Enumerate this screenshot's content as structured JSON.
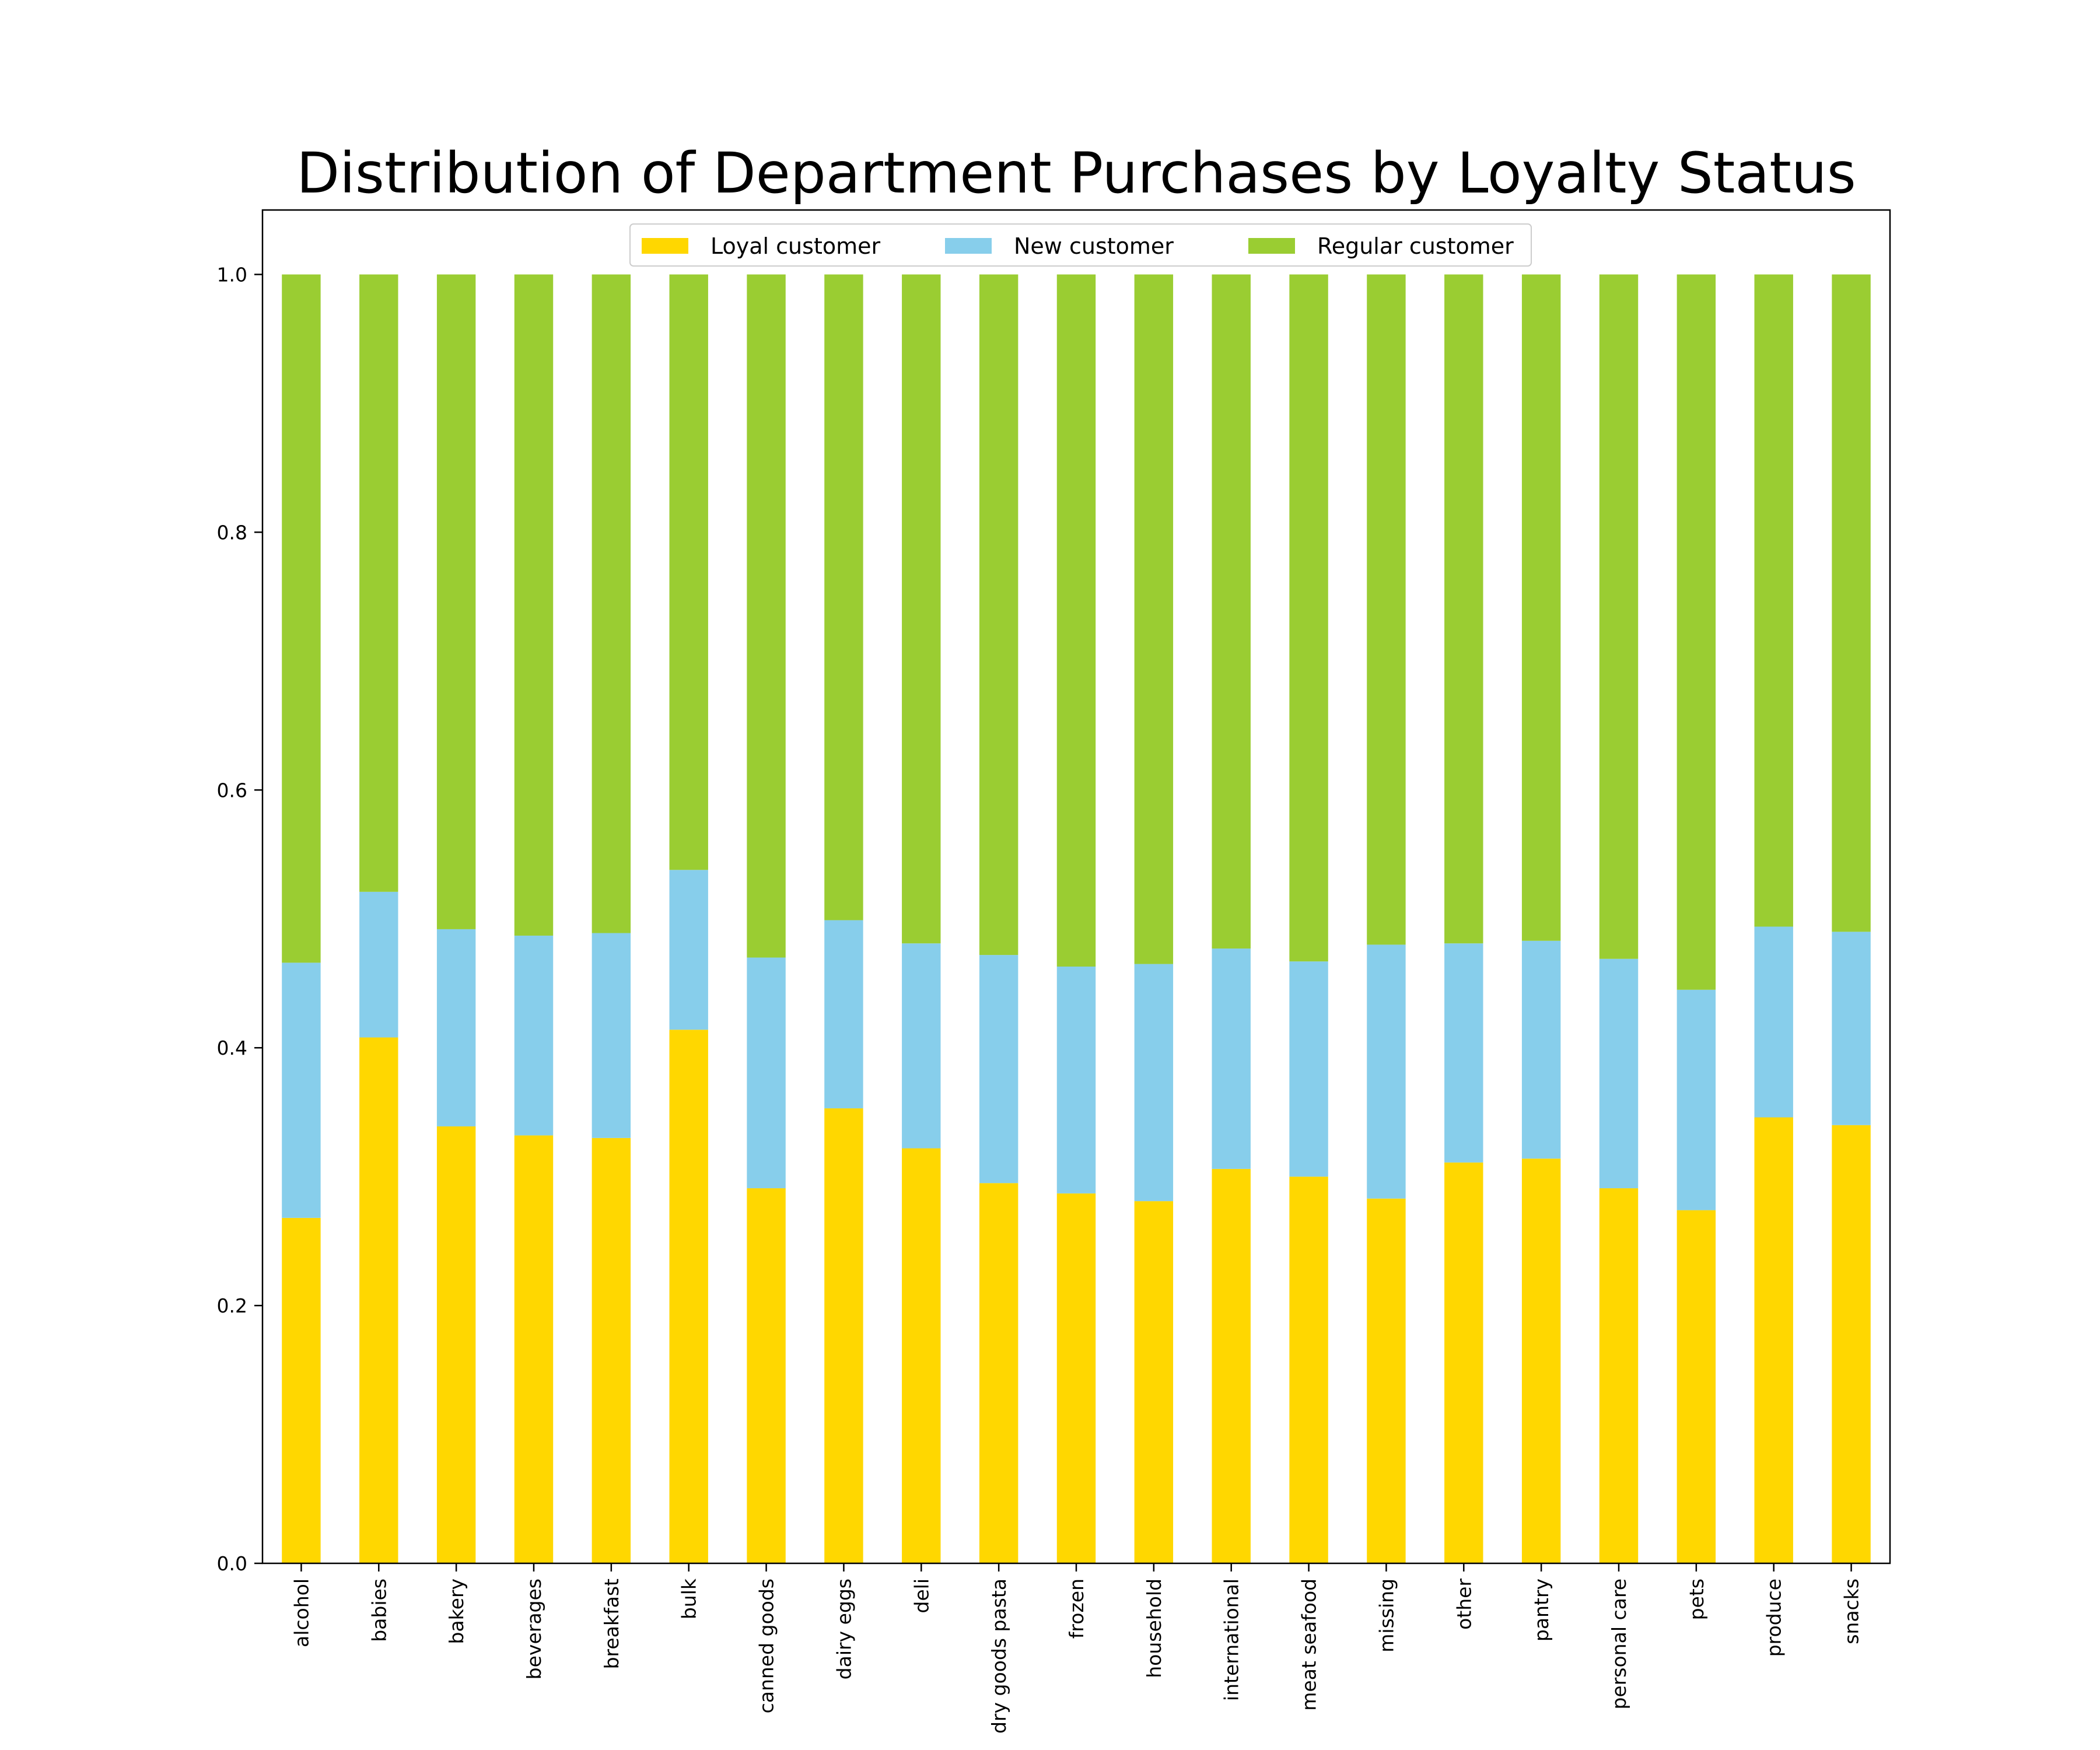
{
  "chart_data": {
    "type": "bar",
    "stacked": true,
    "title": "Distribution of Department Purchases by Loyalty Status",
    "xlabel": "",
    "ylabel": "",
    "ylim": [
      0,
      1.05
    ],
    "yticks": [
      0.0,
      0.2,
      0.4,
      0.6,
      0.8,
      1.0
    ],
    "ytick_labels": [
      "0.0",
      "0.2",
      "0.4",
      "0.6",
      "0.8",
      "1.0"
    ],
    "grid": false,
    "legend_position": "top-center",
    "categories": [
      "alcohol",
      "babies",
      "bakery",
      "beverages",
      "breakfast",
      "bulk",
      "canned goods",
      "dairy eggs",
      "deli",
      "dry goods pasta",
      "frozen",
      "household",
      "international",
      "meat seafood",
      "missing",
      "other",
      "pantry",
      "personal care",
      "pets",
      "produce",
      "snacks"
    ],
    "series": [
      {
        "name": "Loyal customer",
        "color": "#FFD700",
        "values": [
          0.268,
          0.408,
          0.339,
          0.332,
          0.33,
          0.414,
          0.291,
          0.353,
          0.322,
          0.295,
          0.287,
          0.281,
          0.306,
          0.3,
          0.283,
          0.311,
          0.314,
          0.291,
          0.274,
          0.346,
          0.34
        ]
      },
      {
        "name": "New customer",
        "color": "#87CEEB",
        "values": [
          0.198,
          0.113,
          0.153,
          0.155,
          0.159,
          0.124,
          0.179,
          0.146,
          0.159,
          0.177,
          0.176,
          0.184,
          0.171,
          0.167,
          0.197,
          0.17,
          0.169,
          0.178,
          0.171,
          0.148,
          0.15
        ]
      },
      {
        "name": "Regular customer",
        "color": "#9ACD32",
        "values": [
          0.534,
          0.479,
          0.508,
          0.513,
          0.511,
          0.462,
          0.53,
          0.501,
          0.519,
          0.528,
          0.537,
          0.535,
          0.523,
          0.533,
          0.52,
          0.519,
          0.517,
          0.531,
          0.555,
          0.506,
          0.51
        ]
      }
    ]
  }
}
